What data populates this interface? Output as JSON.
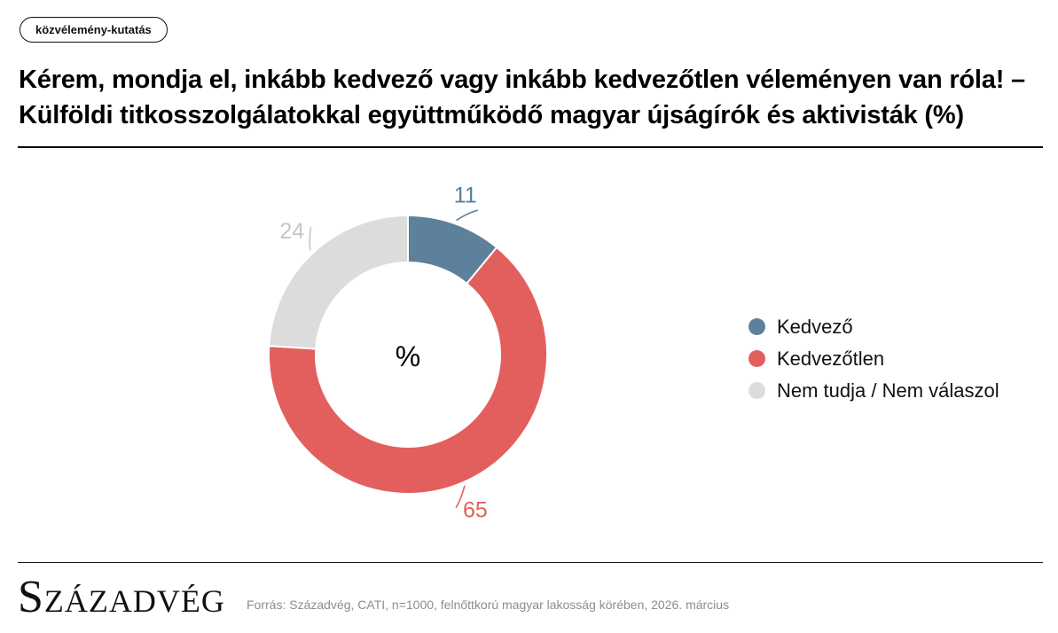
{
  "badge": {
    "label": "közvélemény-kutatás"
  },
  "title": {
    "line1": "Kérem, mondja el, inkább kedvező vagy inkább kedvezőtlen véleményen van róla! –",
    "line2": "Külföldi titkosszolgálatokkal együttműködő magyar újságírók és aktivisták (%)"
  },
  "chart_data": {
    "type": "pie",
    "subtype": "donut",
    "title": "Kérem, mondja el, inkább kedvező vagy inkább kedvezőtlen véleményen van róla! – Külföldi titkosszolgálatokkal együttműködő magyar újságírók és aktivisták (%)",
    "unit": "%",
    "center_label": "%",
    "direction": "clockwise",
    "start_angle_deg": 0,
    "legend_position": "right",
    "series": [
      {
        "name": "Kedvező",
        "value": 11,
        "color": "#5d809b",
        "label_color": "#54809e"
      },
      {
        "name": "Kedvezőtlen",
        "value": 65,
        "color": "#e25f5e",
        "label_color": "#e0605e"
      },
      {
        "name": "Nem tudja / Nem válaszol",
        "value": 24,
        "color": "#dcdcdd",
        "label_color": "#c5c7c8"
      }
    ]
  },
  "footer": {
    "logo": "Századvég",
    "source": "Forrás: Századvég, CATI, n=1000, felnőttkorú magyar lakosság körében, 2026. március"
  }
}
